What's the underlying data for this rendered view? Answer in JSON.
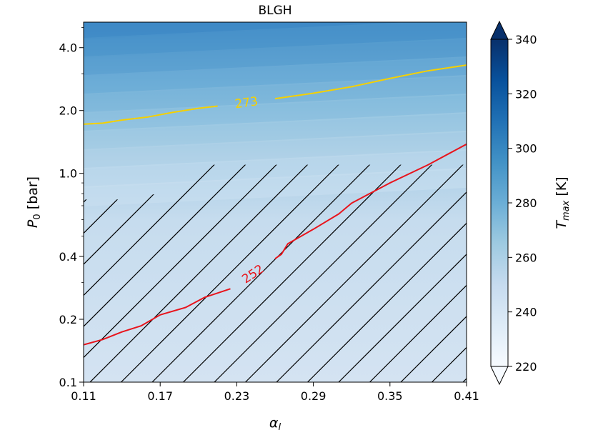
{
  "chart_data": {
    "type": "heatmap",
    "title": "BLGH",
    "xlabel": "α_l",
    "ylabel": "P_0 [bar]",
    "x_scale": "linear",
    "y_scale": "log",
    "xlim": [
      0.11,
      0.41
    ],
    "ylim": [
      0.1,
      5.3
    ],
    "x_ticks": [
      0.11,
      0.17,
      0.23,
      0.29,
      0.35,
      0.41
    ],
    "x_tick_labels": [
      "0.11",
      "0.17",
      "0.23",
      "0.29",
      "0.35",
      "0.41"
    ],
    "y_ticks": [
      0.1,
      0.2,
      0.4,
      1.0,
      2.0,
      4.0
    ],
    "y_tick_labels": [
      "0.1",
      "0.2",
      "0.4",
      "1.0",
      "2.0",
      "4.0"
    ],
    "colorbar": {
      "label": "T_max [K]",
      "range": [
        220,
        340
      ],
      "ticks": [
        220,
        240,
        260,
        280,
        300,
        320,
        340
      ],
      "tick_labels": [
        "220",
        "240",
        "260",
        "280",
        "300",
        "320",
        "340"
      ],
      "extend": "both",
      "colormap": "Blues",
      "colors": [
        "#f7fbff",
        "#deebf7",
        "#c6dbef",
        "#9ecae1",
        "#6baed6",
        "#4292c6",
        "#2171b5",
        "#08519c",
        "#08306b"
      ]
    },
    "contours": [
      {
        "level": 273,
        "label": "273",
        "color": "#f5d000",
        "points": [
          [
            0.11,
            1.72
          ],
          [
            0.125,
            1.74
          ],
          [
            0.14,
            1.8
          ],
          [
            0.16,
            1.86
          ],
          [
            0.18,
            1.96
          ],
          [
            0.2,
            2.05
          ],
          [
            0.215,
            2.1
          ],
          [
            0.26,
            2.28
          ],
          [
            0.29,
            2.42
          ],
          [
            0.32,
            2.6
          ],
          [
            0.35,
            2.85
          ],
          [
            0.38,
            3.1
          ],
          [
            0.41,
            3.3
          ]
        ]
      },
      {
        "level": 252,
        "label": "252",
        "color": "#e8141c",
        "points": [
          [
            0.11,
            0.151
          ],
          [
            0.125,
            0.16
          ],
          [
            0.14,
            0.174
          ],
          [
            0.155,
            0.186
          ],
          [
            0.17,
            0.21
          ],
          [
            0.19,
            0.228
          ],
          [
            0.205,
            0.255
          ],
          [
            0.225,
            0.28
          ],
          [
            0.26,
            0.39
          ],
          [
            0.265,
            0.41
          ],
          [
            0.27,
            0.46
          ],
          [
            0.29,
            0.54
          ],
          [
            0.31,
            0.64
          ],
          [
            0.32,
            0.72
          ],
          [
            0.35,
            0.9
          ],
          [
            0.38,
            1.1
          ],
          [
            0.41,
            1.38
          ]
        ]
      }
    ],
    "hatched_region": {
      "description": "",
      "boundary": [
        [
          0.11,
          0.75
        ],
        [
          0.13,
          0.75
        ],
        [
          0.15,
          0.75
        ],
        [
          0.155,
          0.78
        ],
        [
          0.17,
          0.8
        ],
        [
          0.2,
          1.1
        ],
        [
          0.41,
          1.1
        ]
      ]
    }
  }
}
